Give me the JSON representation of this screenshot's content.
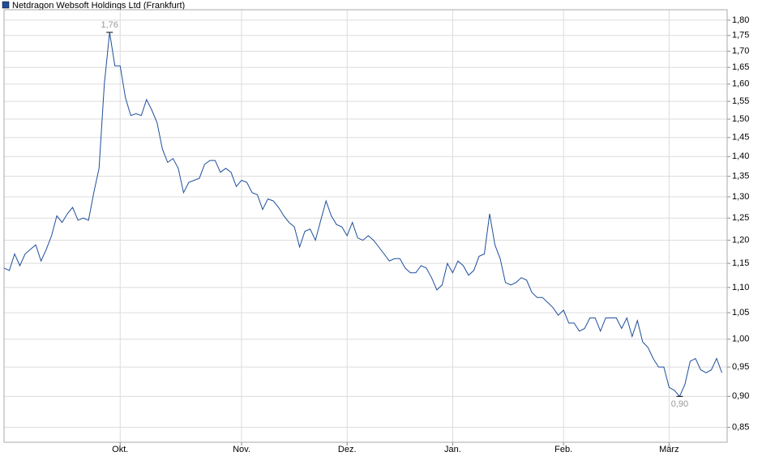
{
  "chart_data": {
    "type": "line",
    "series": [
      {
        "name": "Netdragon Websoft Holdings Ltd (Frankfurt)",
        "color": "#1f4e9c",
        "x": [
          0,
          1,
          2,
          3,
          4,
          5,
          6,
          7,
          8,
          9,
          10,
          11,
          12,
          13,
          14,
          15,
          16,
          17,
          18,
          19,
          20,
          21,
          22,
          23,
          24,
          25,
          26,
          27,
          28,
          29,
          30,
          31,
          32,
          33,
          34,
          35,
          36,
          37,
          38,
          39,
          40,
          41,
          42,
          43,
          44,
          45,
          46,
          47,
          48,
          49,
          50,
          51,
          52,
          53,
          54,
          55,
          56,
          57,
          58,
          59,
          60,
          61,
          62,
          63,
          64,
          65,
          66,
          67,
          68,
          69,
          70,
          71,
          72,
          73,
          74,
          75,
          76,
          77,
          78,
          79,
          80,
          81,
          82,
          83,
          84,
          85,
          86,
          87,
          88,
          89,
          90,
          91,
          92,
          93,
          94,
          95,
          96,
          97,
          98,
          99,
          100,
          101,
          102,
          103,
          104,
          105,
          106,
          107,
          108,
          109,
          110,
          111,
          112,
          113,
          114,
          115,
          116,
          117,
          118,
          119,
          120,
          121,
          122,
          123,
          124,
          125,
          126,
          127,
          128,
          129,
          130,
          131,
          132,
          133,
          134,
          135,
          136
        ],
        "values": [
          1.14,
          1.135,
          1.17,
          1.145,
          1.17,
          1.18,
          1.19,
          1.155,
          1.18,
          1.21,
          1.255,
          1.24,
          1.26,
          1.275,
          1.245,
          1.25,
          1.245,
          1.31,
          1.37,
          1.6,
          1.76,
          1.655,
          1.655,
          1.56,
          1.51,
          1.515,
          1.51,
          1.555,
          1.525,
          1.49,
          1.42,
          1.385,
          1.395,
          1.37,
          1.31,
          1.335,
          1.34,
          1.345,
          1.38,
          1.39,
          1.39,
          1.36,
          1.37,
          1.36,
          1.325,
          1.34,
          1.335,
          1.31,
          1.305,
          1.27,
          1.295,
          1.29,
          1.275,
          1.255,
          1.24,
          1.23,
          1.185,
          1.22,
          1.225,
          1.2,
          1.245,
          1.29,
          1.255,
          1.235,
          1.23,
          1.21,
          1.24,
          1.205,
          1.2,
          1.21,
          1.2,
          1.185,
          1.17,
          1.155,
          1.16,
          1.16,
          1.14,
          1.13,
          1.13,
          1.145,
          1.14,
          1.12,
          1.095,
          1.105,
          1.15,
          1.13,
          1.155,
          1.145,
          1.125,
          1.135,
          1.165,
          1.17,
          1.26,
          1.19,
          1.16,
          1.11,
          1.105,
          1.11,
          1.12,
          1.115,
          1.09,
          1.08,
          1.08,
          1.07,
          1.06,
          1.045,
          1.055,
          1.03,
          1.03,
          1.015,
          1.02,
          1.04,
          1.04,
          1.015,
          1.04,
          1.04,
          1.04,
          1.02,
          1.04,
          1.005,
          1.035,
          0.995,
          0.985,
          0.965,
          0.95,
          0.95,
          0.915,
          0.91,
          0.9,
          0.92,
          0.96,
          0.965,
          0.945,
          0.94,
          0.945,
          0.965,
          0.94
        ]
      }
    ],
    "annotations": [
      {
        "x": 20,
        "y": 1.76,
        "label": "1,76",
        "position": "above"
      },
      {
        "x": 128,
        "y": 0.9,
        "label": "0,90",
        "position": "below"
      }
    ],
    "xlim": [
      0,
      137
    ],
    "xticks": [
      {
        "value": 22,
        "label": "Okt."
      },
      {
        "value": 45,
        "label": "Nov."
      },
      {
        "value": 65,
        "label": "Dez."
      },
      {
        "value": 85,
        "label": "Jan."
      },
      {
        "value": 106,
        "label": "Feb."
      },
      {
        "value": 126,
        "label": "März"
      }
    ],
    "ylim": [
      0.827,
      1.835
    ],
    "log_scale": true,
    "grid": true,
    "y_axis_side": "right",
    "yticks": [
      {
        "value": 0.85,
        "label": "0,85"
      },
      {
        "value": 0.9,
        "label": "0,90"
      },
      {
        "value": 0.95,
        "label": "0,95"
      },
      {
        "value": 1.0,
        "label": "1,00"
      },
      {
        "value": 1.05,
        "label": "1,05"
      },
      {
        "value": 1.1,
        "label": "1,10"
      },
      {
        "value": 1.15,
        "label": "1,15"
      },
      {
        "value": 1.2,
        "label": "1,20"
      },
      {
        "value": 1.25,
        "label": "1,25"
      },
      {
        "value": 1.3,
        "label": "1,30"
      },
      {
        "value": 1.35,
        "label": "1,35"
      },
      {
        "value": 1.4,
        "label": "1,40"
      },
      {
        "value": 1.45,
        "label": "1,45"
      },
      {
        "value": 1.5,
        "label": "1,50"
      },
      {
        "value": 1.55,
        "label": "1,55"
      },
      {
        "value": 1.6,
        "label": "1,60"
      },
      {
        "value": 1.65,
        "label": "1,65"
      },
      {
        "value": 1.7,
        "label": "1,70"
      },
      {
        "value": 1.75,
        "label": "1,75"
      },
      {
        "value": 1.8,
        "label": "1,80"
      }
    ]
  }
}
